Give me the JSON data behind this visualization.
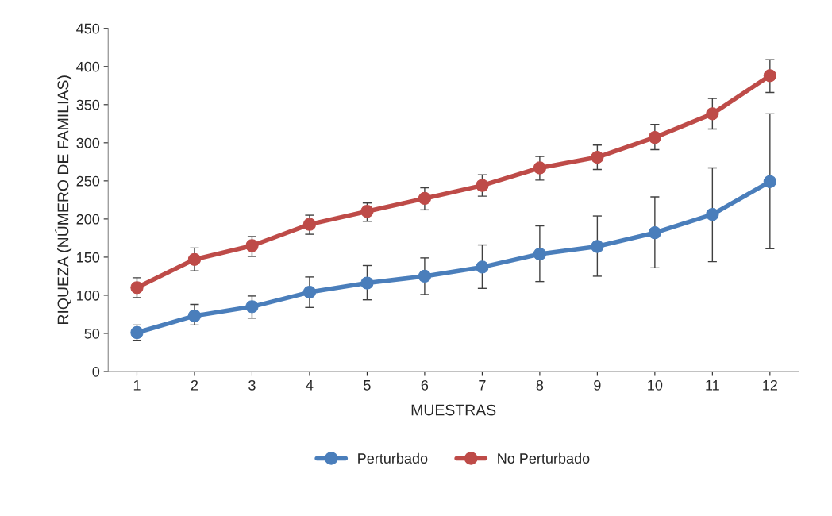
{
  "chart_data": {
    "type": "line",
    "xlabel": "MUESTRAS",
    "ylabel": "RIQUEZA (NÚMERO DE FAMILIAS)",
    "categories": [
      "1",
      "2",
      "3",
      "4",
      "5",
      "6",
      "7",
      "8",
      "9",
      "10",
      "11",
      "12"
    ],
    "series": [
      {
        "name": "Perturbado",
        "color": "#4a7ebb",
        "values": [
          51,
          73,
          85,
          104,
          116,
          125,
          137,
          154,
          164,
          182,
          206,
          249
        ],
        "errors": [
          [
            41,
            61
          ],
          [
            61,
            88
          ],
          [
            70,
            99
          ],
          [
            84,
            124
          ],
          [
            94,
            139
          ],
          [
            101,
            149
          ],
          [
            109,
            166
          ],
          [
            118,
            191
          ],
          [
            125,
            204
          ],
          [
            136,
            229
          ],
          [
            144,
            267
          ],
          [
            161,
            338
          ]
        ]
      },
      {
        "name": "No Perturbado",
        "color": "#be4b48",
        "values": [
          110,
          147,
          165,
          193,
          210,
          227,
          244,
          267,
          281,
          307,
          338,
          388
        ],
        "errors": [
          [
            97,
            123
          ],
          [
            132,
            162
          ],
          [
            151,
            177
          ],
          [
            180,
            205
          ],
          [
            197,
            221
          ],
          [
            212,
            241
          ],
          [
            230,
            258
          ],
          [
            251,
            282
          ],
          [
            265,
            297
          ],
          [
            291,
            324
          ],
          [
            318,
            358
          ],
          [
            366,
            409
          ]
        ]
      }
    ],
    "ylim": [
      0,
      450
    ],
    "yticks": [
      0,
      50,
      100,
      150,
      200,
      250,
      300,
      350,
      400,
      450
    ],
    "grid": false,
    "legend": "bottom",
    "marker": "circle",
    "line_style": "solid"
  }
}
